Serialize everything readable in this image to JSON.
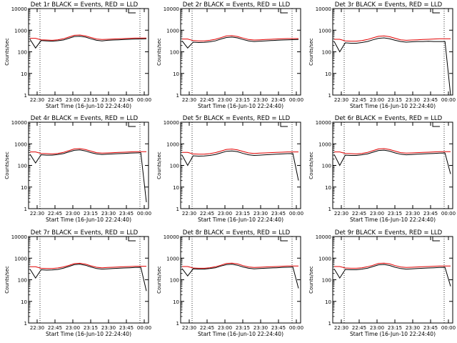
{
  "colors": {
    "events": "#000000",
    "lld": "#e00000",
    "axes": "#000000",
    "background": "#ffffff"
  },
  "chart_data": [
    {
      "type": "line",
      "title": "Det 1r BLACK = Events, RED = LLD",
      "xlabel": "Start Time (16-Jun-10 22:24:40)",
      "ylabel": "Counts/sec",
      "yscale": "log",
      "ylim": [
        1,
        10000
      ],
      "x_ticks": [
        "22:30",
        "22:45",
        "23:00",
        "23:15",
        "23:30",
        "23:45",
        "00:00"
      ],
      "y_ticks": [
        "1",
        "10",
        "100",
        "1000",
        "10000"
      ],
      "series": [
        {
          "name": "Events",
          "values": [
            380,
            150,
            330,
            320,
            310,
            325,
            350,
            420,
            510,
            520,
            480,
            400,
            340,
            320,
            340,
            350,
            360,
            370,
            380,
            390,
            395,
            400
          ]
        },
        {
          "name": "LLD",
          "values": [
            420,
            420,
            360,
            350,
            340,
            360,
            400,
            480,
            580,
            600,
            540,
            460,
            390,
            370,
            380,
            390,
            400,
            410,
            420,
            430,
            430,
            430
          ]
        }
      ]
    },
    {
      "type": "line",
      "title": "Det 2r BLACK = Events, RED = LLD",
      "xlabel": "Start Time (16-Jun-10 22:24:40)",
      "ylabel": "Counts/sec",
      "yscale": "log",
      "ylim": [
        1,
        10000
      ],
      "x_ticks": [
        "22:30",
        "22:45",
        "23:00",
        "23:15",
        "23:30",
        "23:45",
        "00:00"
      ],
      "y_ticks": [
        "1",
        "10",
        "100",
        "1000",
        "10000"
      ],
      "series": [
        {
          "name": "Events",
          "values": [
            320,
            150,
            280,
            270,
            275,
            290,
            320,
            390,
            460,
            480,
            440,
            370,
            320,
            300,
            310,
            320,
            330,
            340,
            350,
            360,
            365,
            370
          ]
        },
        {
          "name": "LLD",
          "values": [
            390,
            390,
            330,
            320,
            320,
            340,
            380,
            450,
            540,
            560,
            510,
            430,
            370,
            350,
            360,
            370,
            380,
            390,
            400,
            410,
            410,
            410
          ]
        }
      ]
    },
    {
      "type": "line",
      "title": "Det 3r BLACK = Events, RED = LLD",
      "xlabel": "Start Time (16-Jun-10 22:24:40)",
      "ylabel": "Counts/sec",
      "yscale": "log",
      "ylim": [
        1,
        10000
      ],
      "x_ticks": [
        "22:30",
        "22:45",
        "23:00",
        "23:15",
        "23:30",
        "23:45",
        "00:00"
      ],
      "y_ticks": [
        "1",
        "10",
        "100",
        "1000",
        "10000"
      ],
      "series": [
        {
          "name": "Events",
          "values": [
            300,
            100,
            260,
            250,
            250,
            270,
            300,
            360,
            420,
            440,
            400,
            340,
            300,
            280,
            290,
            300,
            300,
            305,
            300,
            300,
            300,
            1
          ]
        },
        {
          "name": "LLD",
          "values": [
            380,
            380,
            320,
            310,
            310,
            330,
            370,
            440,
            520,
            540,
            500,
            420,
            360,
            340,
            350,
            360,
            370,
            380,
            390,
            400,
            400,
            400
          ]
        }
      ]
    },
    {
      "type": "line",
      "title": "Det 4r BLACK = Events, RED = LLD",
      "xlabel": "Start Time (16-Jun-10 22:24:40)",
      "ylabel": "Counts/sec",
      "yscale": "log",
      "ylim": [
        1,
        10000
      ],
      "x_ticks": [
        "22:30",
        "22:45",
        "23:00",
        "23:15",
        "23:30",
        "23:45",
        "00:00"
      ],
      "y_ticks": [
        "1",
        "10",
        "100",
        "1000",
        "10000"
      ],
      "series": [
        {
          "name": "Events",
          "values": [
            330,
            130,
            310,
            300,
            300,
            320,
            350,
            420,
            500,
            520,
            470,
            390,
            340,
            320,
            330,
            340,
            350,
            360,
            370,
            380,
            385,
            2
          ]
        },
        {
          "name": "LLD",
          "values": [
            420,
            420,
            360,
            350,
            340,
            360,
            400,
            480,
            580,
            600,
            540,
            460,
            390,
            370,
            380,
            390,
            400,
            410,
            420,
            430,
            430,
            430
          ]
        }
      ]
    },
    {
      "type": "line",
      "title": "Det 5r BLACK = Events, RED = LLD",
      "xlabel": "Start Time (16-Jun-10 22:24:40)",
      "ylabel": "Counts/sec",
      "yscale": "log",
      "ylim": [
        1,
        10000
      ],
      "x_ticks": [
        "22:30",
        "22:45",
        "23:00",
        "23:15",
        "23:30",
        "23:45",
        "00:00"
      ],
      "y_ticks": [
        "1",
        "10",
        "100",
        "1000",
        "10000"
      ],
      "series": [
        {
          "name": "Events",
          "values": [
            300,
            100,
            280,
            270,
            275,
            290,
            320,
            380,
            450,
            470,
            430,
            360,
            310,
            290,
            300,
            310,
            320,
            330,
            340,
            350,
            355,
            20
          ]
        },
        {
          "name": "LLD",
          "values": [
            400,
            400,
            340,
            330,
            330,
            350,
            390,
            460,
            550,
            570,
            520,
            440,
            380,
            360,
            370,
            380,
            390,
            400,
            410,
            420,
            420,
            420
          ]
        }
      ]
    },
    {
      "type": "line",
      "title": "Det 6r BLACK = Events, RED = LLD",
      "xlabel": "Start Time (16-Jun-10 22:24:40)",
      "ylabel": "Counts/sec",
      "yscale": "log",
      "ylim": [
        1,
        10000
      ],
      "x_ticks": [
        "22:30",
        "22:45",
        "23:00",
        "23:15",
        "23:30",
        "23:45",
        "00:00"
      ],
      "y_ticks": [
        "1",
        "10",
        "100",
        "1000",
        "10000"
      ],
      "series": [
        {
          "name": "Events",
          "values": [
            320,
            100,
            300,
            290,
            290,
            310,
            340,
            410,
            490,
            510,
            460,
            380,
            330,
            310,
            320,
            330,
            340,
            350,
            360,
            370,
            375,
            40
          ]
        },
        {
          "name": "LLD",
          "values": [
            420,
            420,
            360,
            350,
            340,
            360,
            400,
            480,
            580,
            600,
            540,
            460,
            390,
            370,
            380,
            390,
            400,
            410,
            420,
            430,
            430,
            430
          ]
        }
      ]
    },
    {
      "type": "line",
      "title": "Det 7r BLACK = Events, RED = LLD",
      "xlabel": "Start Time (16-Jun-10 22:24:40)",
      "ylabel": "Counts/sec",
      "yscale": "log",
      "ylim": [
        1,
        10000
      ],
      "x_ticks": [
        "22:30",
        "22:45",
        "23:00",
        "23:15",
        "23:30",
        "23:45",
        "00:00"
      ],
      "y_ticks": [
        "1",
        "10",
        "100",
        "1000",
        "10000"
      ],
      "series": [
        {
          "name": "Events",
          "values": [
            310,
            120,
            290,
            280,
            285,
            300,
            340,
            410,
            500,
            520,
            470,
            390,
            330,
            310,
            320,
            330,
            340,
            350,
            360,
            370,
            375,
            30
          ]
        },
        {
          "name": "LLD",
          "values": [
            400,
            400,
            340,
            330,
            330,
            350,
            390,
            460,
            560,
            580,
            530,
            440,
            380,
            360,
            370,
            380,
            390,
            400,
            410,
            420,
            420,
            420
          ]
        }
      ]
    },
    {
      "type": "line",
      "title": "Det 8r BLACK = Events, RED = LLD",
      "xlabel": "Start Time (16-Jun-10 22:24:40)",
      "ylabel": "Counts/sec",
      "yscale": "log",
      "ylim": [
        1,
        10000
      ],
      "x_ticks": [
        "22:30",
        "22:45",
        "23:00",
        "23:15",
        "23:30",
        "23:45",
        "00:00"
      ],
      "y_ticks": [
        "1",
        "10",
        "100",
        "1000",
        "10000"
      ],
      "series": [
        {
          "name": "Events",
          "values": [
            330,
            150,
            320,
            310,
            310,
            330,
            360,
            430,
            500,
            520,
            470,
            390,
            340,
            320,
            330,
            340,
            350,
            360,
            370,
            380,
            385,
            40
          ]
        },
        {
          "name": "LLD",
          "values": [
            410,
            410,
            350,
            340,
            340,
            360,
            400,
            470,
            570,
            590,
            540,
            450,
            390,
            370,
            380,
            390,
            400,
            410,
            420,
            430,
            430,
            430
          ]
        }
      ]
    },
    {
      "type": "line",
      "title": "Det 9r BLACK = Events, RED = LLD",
      "xlabel": "Start Time (16-Jun-10 22:24:40)",
      "ylabel": "Counts/sec",
      "yscale": "log",
      "ylim": [
        1,
        10000
      ],
      "x_ticks": [
        "22:30",
        "22:45",
        "23:00",
        "23:15",
        "23:30",
        "23:45",
        "00:00"
      ],
      "y_ticks": [
        "1",
        "10",
        "100",
        "1000",
        "10000"
      ],
      "series": [
        {
          "name": "Events",
          "values": [
            320,
            120,
            300,
            290,
            290,
            310,
            340,
            410,
            490,
            510,
            460,
            380,
            330,
            310,
            320,
            330,
            340,
            350,
            360,
            370,
            375,
            50
          ]
        },
        {
          "name": "LLD",
          "values": [
            410,
            410,
            350,
            340,
            340,
            360,
            400,
            470,
            570,
            590,
            540,
            450,
            390,
            370,
            380,
            390,
            400,
            410,
            420,
            430,
            430,
            430
          ]
        }
      ]
    }
  ]
}
